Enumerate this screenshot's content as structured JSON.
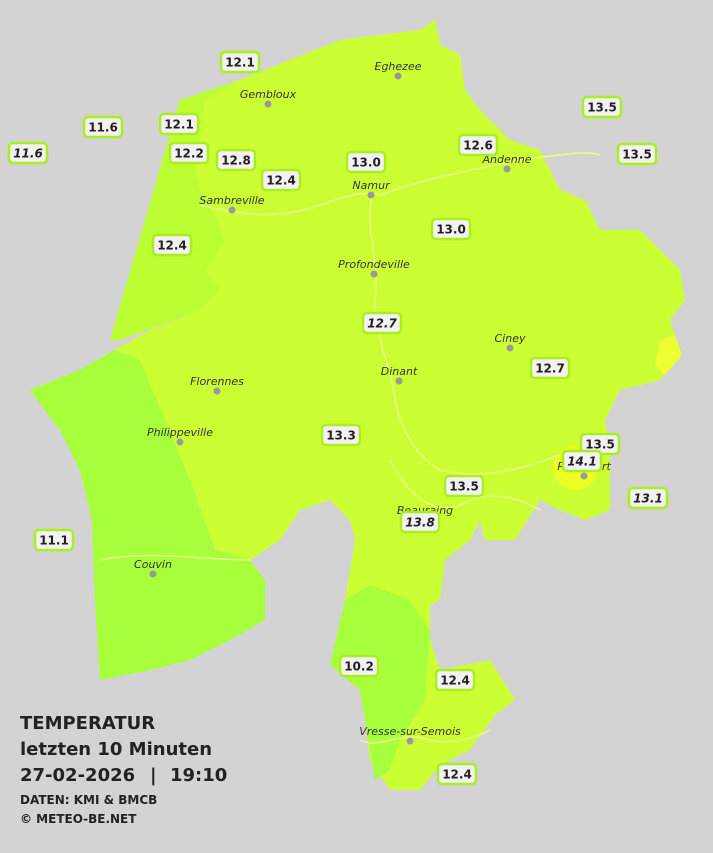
{
  "legend": {
    "title": "TEMPERATUR",
    "period": "letzten 10 Minuten",
    "date": "27-02-2026",
    "separator": "|",
    "time": "19:10",
    "source": "DATEN: KMI & BMCB",
    "copyright": "© METEO-BE.NET"
  },
  "cities": [
    "Eghezee",
    "Gembloux",
    "Andenne",
    "Namur",
    "Sambreville",
    "Profondeville",
    "Ciney",
    "Dinant",
    "Florennes",
    "Philippeville",
    "Rochefort",
    "Beauraing",
    "Couvin",
    "Vresse-sur-Semois"
  ],
  "stations": [
    "12.1",
    "11.6",
    "11.6",
    "12.1",
    "12.2",
    "12.8",
    "12.4",
    "13.0",
    "12.6",
    "13.5",
    "13.5",
    "13.0",
    "12.4",
    "12.7",
    "12.7",
    "13.3",
    "13.5",
    "14.1",
    "13.5",
    "13.1",
    "13.8",
    "11.1",
    "10.2",
    "12.4",
    "12.4"
  ]
}
